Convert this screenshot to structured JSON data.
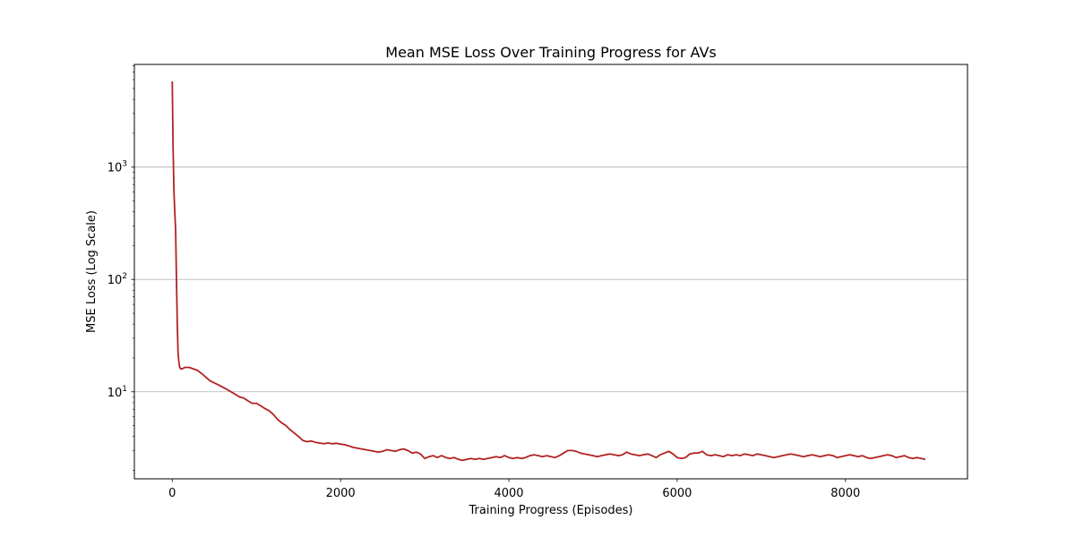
{
  "chart_data": {
    "type": "line",
    "title": "Mean MSE Loss Over Training Progress for AVs",
    "xlabel": "Training Progress (Episodes)",
    "ylabel": "MSE Loss (Log Scale)",
    "xlim": [
      -450,
      9450
    ],
    "ylim": [
      1.68,
      8200
    ],
    "yscale": "log",
    "grid": "y-major",
    "xticks": [
      {
        "value": 0,
        "label": "0"
      },
      {
        "value": 2000,
        "label": "2000"
      },
      {
        "value": 4000,
        "label": "4000"
      },
      {
        "value": 6000,
        "label": "6000"
      },
      {
        "value": 8000,
        "label": "8000"
      }
    ],
    "yticks": [
      {
        "value": 10,
        "base": "10",
        "exp": "1"
      },
      {
        "value": 100,
        "base": "10",
        "exp": "2"
      },
      {
        "value": 1000,
        "base": "10",
        "exp": "3"
      }
    ],
    "line_color": "#b22222",
    "series": [
      {
        "x": [
          0,
          10,
          20,
          30,
          40,
          50,
          60,
          70,
          80,
          90,
          100,
          120,
          150,
          200,
          250,
          300,
          350,
          400,
          450,
          500,
          550,
          600,
          650,
          700,
          750,
          800,
          850,
          900,
          950,
          1000,
          1050,
          1100,
          1150,
          1200,
          1250,
          1300,
          1350,
          1400,
          1450,
          1500,
          1550,
          1600,
          1650,
          1700,
          1750,
          1800,
          1850,
          1900,
          1950,
          2000,
          2050,
          2100,
          2150,
          2200,
          2250,
          2300,
          2350,
          2400,
          2450,
          2500,
          2550,
          2600,
          2650,
          2700,
          2750,
          2800,
          2850,
          2900,
          2950,
          3000,
          3050,
          3100,
          3150,
          3200,
          3250,
          3300,
          3350,
          3400,
          3450,
          3500,
          3550,
          3600,
          3650,
          3700,
          3750,
          3800,
          3850,
          3900,
          3950,
          4000,
          4050,
          4100,
          4150,
          4200,
          4250,
          4300,
          4350,
          4400,
          4450,
          4500,
          4550,
          4600,
          4650,
          4700,
          4750,
          4800,
          4850,
          4900,
          4950,
          5000,
          5050,
          5100,
          5150,
          5200,
          5250,
          5300,
          5350,
          5400,
          5450,
          5500,
          5550,
          5600,
          5650,
          5700,
          5750,
          5800,
          5850,
          5900,
          5950,
          6000,
          6050,
          6100,
          6150,
          6200,
          6250,
          6300,
          6350,
          6400,
          6450,
          6500,
          6550,
          6600,
          6650,
          6700,
          6750,
          6800,
          6850,
          6900,
          6950,
          7000,
          7050,
          7100,
          7150,
          7200,
          7250,
          7300,
          7350,
          7400,
          7450,
          7500,
          7550,
          7600,
          7650,
          7700,
          7750,
          7800,
          7850,
          7900,
          7950,
          8000,
          8050,
          8100,
          8150,
          8200,
          8250,
          8300,
          8350,
          8400,
          8450,
          8500,
          8550,
          8600,
          8650,
          8700,
          8750,
          8800,
          8850,
          8900,
          8950
        ],
        "y": [
          5800,
          1500,
          600,
          400,
          280,
          100,
          40,
          22,
          18,
          16.5,
          16,
          16,
          16.5,
          16.5,
          16,
          15.5,
          14.5,
          13.5,
          12.5,
          12,
          11.5,
          11,
          10.5,
          10,
          9.5,
          9,
          8.8,
          8.3,
          7.9,
          7.9,
          7.5,
          7.1,
          6.8,
          6.3,
          5.7,
          5.3,
          5,
          4.6,
          4.3,
          4,
          3.7,
          3.6,
          3.65,
          3.55,
          3.5,
          3.45,
          3.5,
          3.45,
          3.48,
          3.42,
          3.38,
          3.3,
          3.2,
          3.15,
          3.1,
          3.05,
          3,
          2.95,
          2.9,
          2.95,
          3.05,
          3,
          2.95,
          3.05,
          3.1,
          3,
          2.85,
          2.9,
          2.8,
          2.55,
          2.65,
          2.7,
          2.6,
          2.7,
          2.6,
          2.55,
          2.6,
          2.5,
          2.45,
          2.5,
          2.55,
          2.5,
          2.55,
          2.5,
          2.55,
          2.6,
          2.65,
          2.6,
          2.7,
          2.6,
          2.55,
          2.6,
          2.55,
          2.6,
          2.7,
          2.75,
          2.7,
          2.65,
          2.7,
          2.65,
          2.6,
          2.7,
          2.85,
          3,
          3,
          2.95,
          2.85,
          2.8,
          2.75,
          2.7,
          2.65,
          2.7,
          2.75,
          2.8,
          2.75,
          2.7,
          2.75,
          2.9,
          2.8,
          2.75,
          2.7,
          2.75,
          2.8,
          2.7,
          2.6,
          2.75,
          2.85,
          2.95,
          2.8,
          2.6,
          2.55,
          2.6,
          2.8,
          2.85,
          2.85,
          2.95,
          2.75,
          2.7,
          2.75,
          2.7,
          2.65,
          2.75,
          2.7,
          2.75,
          2.7,
          2.8,
          2.75,
          2.7,
          2.8,
          2.75,
          2.7,
          2.65,
          2.6,
          2.65,
          2.7,
          2.75,
          2.8,
          2.75,
          2.7,
          2.65,
          2.7,
          2.75,
          2.7,
          2.65,
          2.7,
          2.75,
          2.7,
          2.6,
          2.65,
          2.7,
          2.75,
          2.7,
          2.65,
          2.7,
          2.6,
          2.55,
          2.6,
          2.65,
          2.7,
          2.75,
          2.7,
          2.6,
          2.65,
          2.7,
          2.6,
          2.55,
          2.6,
          2.55,
          2.5
        ]
      }
    ]
  }
}
